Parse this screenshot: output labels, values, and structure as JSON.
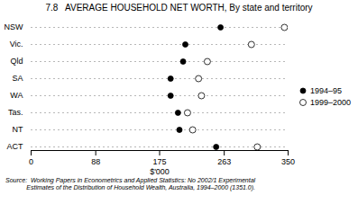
{
  "chart_data": {
    "type": "dot",
    "orientation": "horizontal",
    "title": "7.8   AVERAGE HOUSEHOLD NET WORTH, By state and territory",
    "categories": [
      "NSW",
      "Vic.",
      "Qld",
      "SA",
      "WA",
      "Tas.",
      "NT",
      "ACT"
    ],
    "series": [
      {
        "name": "1994–95",
        "color": "black",
        "marker": "o",
        "values": [
          258,
          210,
          207,
          190,
          190,
          200,
          202,
          252
        ]
      },
      {
        "name": "1999–2000",
        "color": "white",
        "marker": "o",
        "values": [
          345,
          300,
          240,
          228,
          232,
          213,
          220,
          308
        ]
      }
    ],
    "xlabel": "$'000",
    "xlim": [
      0,
      350
    ],
    "xticks": [
      0,
      88,
      175,
      263,
      350
    ],
    "grid": true,
    "legend": "right",
    "annotations": [
      "Source:  Working Papers in Econometrics and Applied Statistics: No 2002/1 Experimental",
      "            Estimates of the Distribution of Household Wealth, Australia, 1994–2000 (1351.0)."
    ]
  }
}
